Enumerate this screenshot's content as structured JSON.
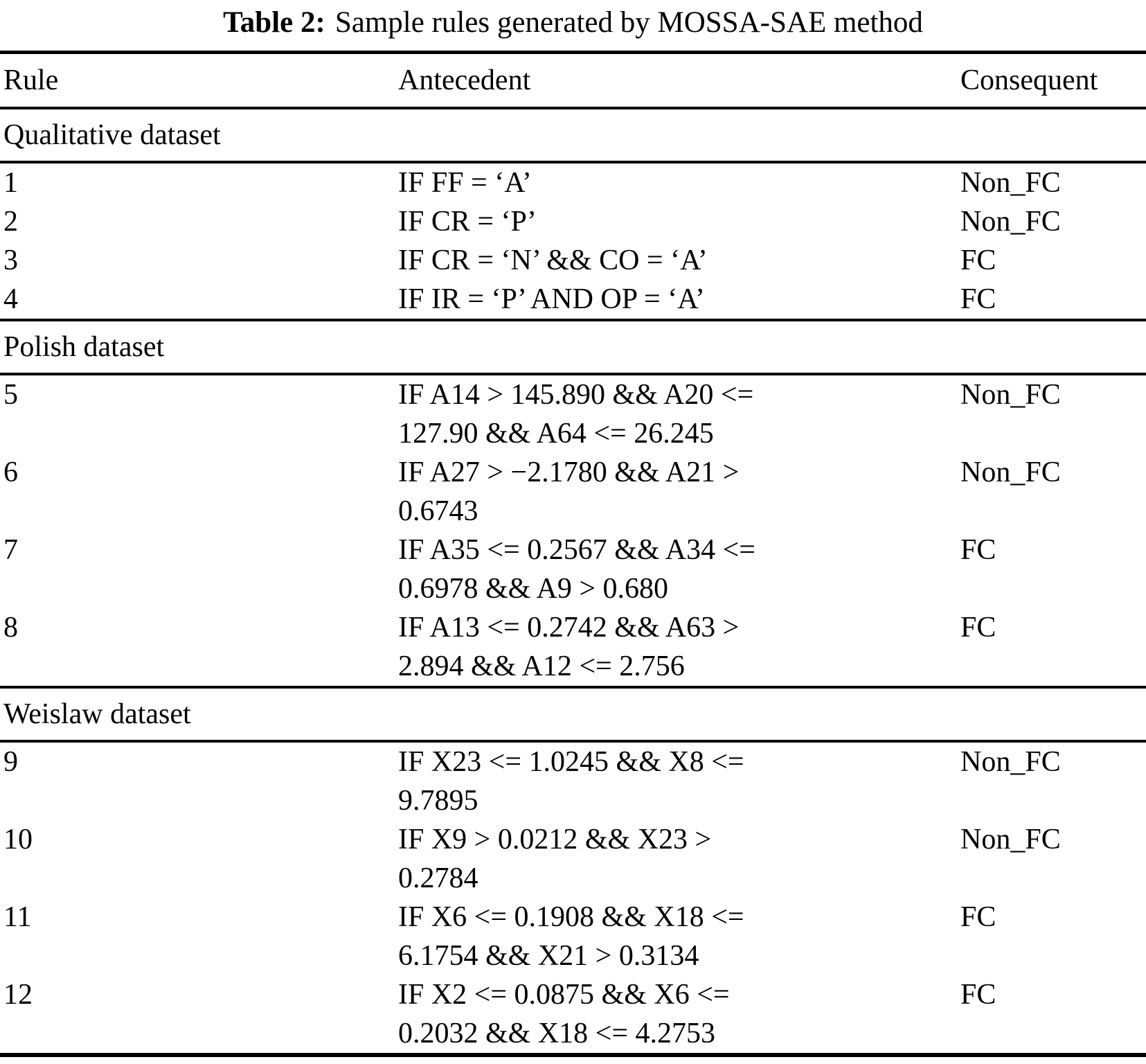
{
  "caption": {
    "label": "Table 2:",
    "text": "Sample rules generated by MOSSA-SAE method"
  },
  "columns": [
    "Rule",
    "Antecedent",
    "Consequent"
  ],
  "sections": [
    {
      "name": "Qualitative dataset",
      "rows": [
        {
          "rule": "1",
          "antecedent": "IF FF = ‘A’",
          "consequent": "Non_FC"
        },
        {
          "rule": "2",
          "antecedent": "IF CR = ‘P’",
          "consequent": "Non_FC"
        },
        {
          "rule": "3",
          "antecedent": "IF CR = ‘N’ && CO = ‘A’",
          "consequent": "FC"
        },
        {
          "rule": "4",
          "antecedent": "IF IR = ‘P’ AND OP = ‘A’",
          "consequent": "FC"
        }
      ]
    },
    {
      "name": "Polish dataset",
      "rows": [
        {
          "rule": "5",
          "antecedent": "IF A14 > 145.890 && A20 <=\n127.90 && A64 <= 26.245",
          "consequent": "Non_FC"
        },
        {
          "rule": "6",
          "antecedent": "IF A27 > −2.1780 && A21 >\n0.6743",
          "consequent": "Non_FC"
        },
        {
          "rule": "7",
          "antecedent": "IF A35 <= 0.2567 && A34 <=\n0.6978 && A9 > 0.680",
          "consequent": "FC"
        },
        {
          "rule": "8",
          "antecedent": "IF A13 <= 0.2742 && A63 >\n2.894 && A12 <= 2.756",
          "consequent": "FC"
        }
      ]
    },
    {
      "name": "Weislaw dataset",
      "rows": [
        {
          "rule": "9",
          "antecedent": "IF X23 <= 1.0245 && X8 <=\n9.7895",
          "consequent": "Non_FC"
        },
        {
          "rule": "10",
          "antecedent": "IF X9 > 0.0212 && X23 >\n0.2784",
          "consequent": "Non_FC"
        },
        {
          "rule": "11",
          "antecedent": "IF X6 <= 0.1908 && X18 <=\n6.1754 && X21 > 0.3134",
          "consequent": "FC"
        },
        {
          "rule": "12",
          "antecedent": "IF X2 <= 0.0875 && X6 <=\n0.2032 && X18 <= 4.2753",
          "consequent": "FC"
        }
      ]
    }
  ],
  "consequent_values": [
    "Non_FC",
    "FC"
  ]
}
